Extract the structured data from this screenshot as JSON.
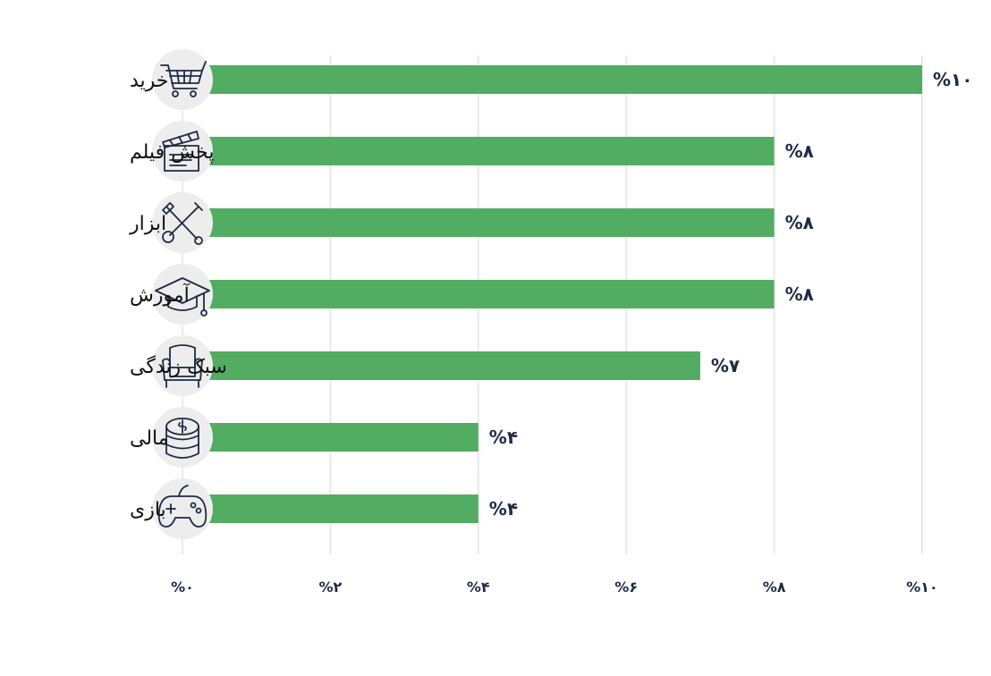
{
  "chart_data": {
    "type": "bar",
    "orientation": "horizontal",
    "categories": [
      "خرید",
      "پخش فیلم",
      "ابزار",
      "آموزش",
      "سبک زندگی",
      "مالی",
      "بازی"
    ],
    "values": [
      10,
      8,
      8,
      8,
      7,
      4,
      4
    ],
    "value_labels": [
      "%۱۰",
      "%۸",
      "%۸",
      "%۸",
      "%۷",
      "%۴",
      "%۴"
    ],
    "icons": [
      "shopping-cart-icon",
      "clapperboard-icon",
      "tools-icon",
      "graduation-cap-icon",
      "armchair-icon",
      "coins-icon",
      "gamepad-icon"
    ],
    "x_ticks": [
      0,
      2,
      4,
      6,
      8,
      10
    ],
    "x_tick_labels": [
      "%۰",
      "%۲",
      "%۴",
      "%۶",
      "%۸",
      "%۱۰"
    ],
    "xlim": [
      0,
      10
    ],
    "title": "",
    "xlabel": "",
    "ylabel": "",
    "grid": true,
    "legend": "none",
    "colors": {
      "bar": "#52ad62",
      "grid": "#e9e9e9",
      "text": "#1d2b45",
      "label": "#111111",
      "icon_bg": "#ededed",
      "icon_stroke": "#1d2b45"
    }
  }
}
